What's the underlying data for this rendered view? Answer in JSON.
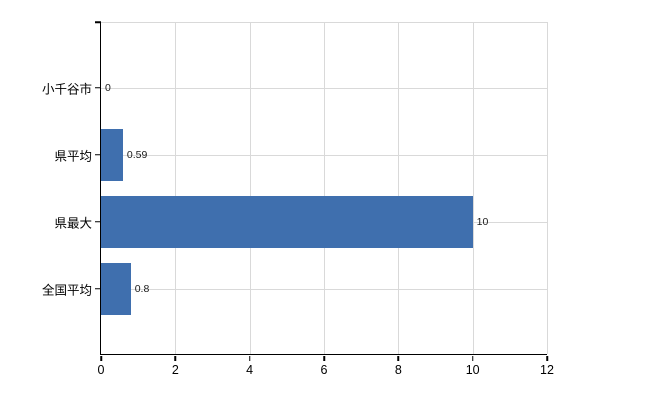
{
  "chart_data": {
    "type": "bar",
    "orientation": "horizontal",
    "title": "",
    "xlabel": "",
    "ylabel": "",
    "categories": [
      "小千谷市",
      "県平均",
      "県最大",
      "全国平均"
    ],
    "values": [
      0,
      0.59,
      10,
      0.8
    ],
    "value_labels": [
      "0",
      "0.59",
      "10",
      "0.8"
    ],
    "xlim": [
      0,
      12
    ],
    "x_ticks": [
      0,
      2,
      4,
      6,
      8,
      10,
      12
    ],
    "grid": true,
    "legend": "none",
    "bar_color": "#3f6fae",
    "grid_color": "#d9d9d9",
    "axis_color": "#000000",
    "background_color": "#ffffff"
  }
}
